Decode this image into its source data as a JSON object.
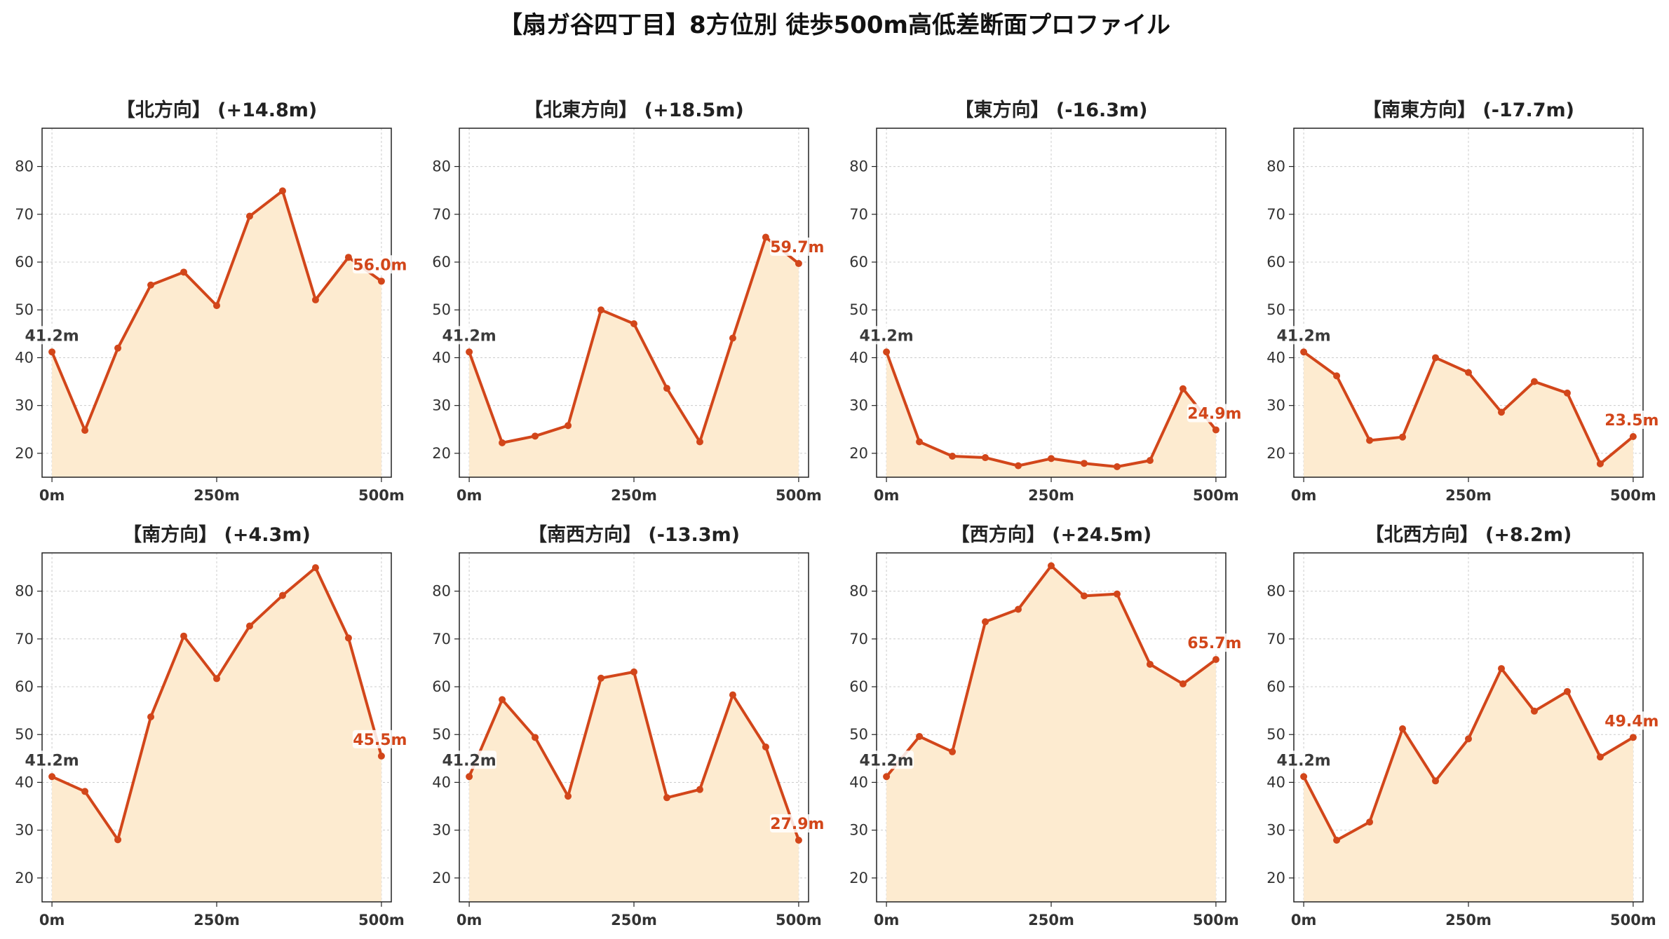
{
  "title": "【扇ガ谷四丁目】8方位別 徒歩500m高低差断面プロファイル",
  "colors": {
    "line": "#d2461a",
    "fill": "#fdebd0",
    "start_label": "#3a3a3a",
    "grid": "#cccccc"
  },
  "chart_data": [
    {
      "type": "area",
      "title": "【北方向】 (+14.8m)",
      "x_ticks": [
        "0m",
        "250m",
        "500m"
      ],
      "y_ticks": [
        "20",
        "30",
        "40",
        "50",
        "60",
        "70",
        "80"
      ],
      "ylim": [
        15,
        88
      ],
      "xlim": [
        -15,
        515
      ],
      "grid": true,
      "x": [
        0,
        50,
        100,
        150,
        200,
        250,
        300,
        350,
        400,
        450,
        500
      ],
      "values": [
        41.2,
        24.8,
        42.0,
        55.2,
        57.9,
        50.9,
        69.6,
        74.9,
        52.1,
        61.0,
        56.0
      ],
      "start_label": "41.2m",
      "end_label": "56.0m"
    },
    {
      "type": "area",
      "title": "【北東方向】 (+18.5m)",
      "x_ticks": [
        "0m",
        "250m",
        "500m"
      ],
      "y_ticks": [
        "20",
        "30",
        "40",
        "50",
        "60",
        "70",
        "80"
      ],
      "ylim": [
        15,
        88
      ],
      "xlim": [
        -15,
        515
      ],
      "grid": true,
      "x": [
        0,
        50,
        100,
        150,
        200,
        250,
        300,
        350,
        400,
        450,
        500
      ],
      "values": [
        41.2,
        22.2,
        23.6,
        25.8,
        50.0,
        47.1,
        33.6,
        22.4,
        44.1,
        65.2,
        59.7
      ],
      "start_label": "41.2m",
      "end_label": "59.7m"
    },
    {
      "type": "area",
      "title": "【東方向】 (-16.3m)",
      "x_ticks": [
        "0m",
        "250m",
        "500m"
      ],
      "y_ticks": [
        "20",
        "30",
        "40",
        "50",
        "60",
        "70",
        "80"
      ],
      "ylim": [
        15,
        88
      ],
      "xlim": [
        -15,
        515
      ],
      "grid": true,
      "x": [
        0,
        50,
        100,
        150,
        200,
        250,
        300,
        350,
        400,
        450,
        500
      ],
      "values": [
        41.2,
        22.4,
        19.4,
        19.1,
        17.4,
        18.9,
        17.9,
        17.2,
        18.5,
        33.5,
        24.9
      ],
      "start_label": "41.2m",
      "end_label": "24.9m"
    },
    {
      "type": "area",
      "title": "【南東方向】 (-17.7m)",
      "x_ticks": [
        "0m",
        "250m",
        "500m"
      ],
      "y_ticks": [
        "20",
        "30",
        "40",
        "50",
        "60",
        "70",
        "80"
      ],
      "ylim": [
        15,
        88
      ],
      "xlim": [
        -15,
        515
      ],
      "grid": true,
      "x": [
        0,
        50,
        100,
        150,
        200,
        250,
        300,
        350,
        400,
        450,
        500
      ],
      "values": [
        41.2,
        36.2,
        22.7,
        23.4,
        40.0,
        36.9,
        28.6,
        35.0,
        32.6,
        17.8,
        23.5
      ],
      "start_label": "41.2m",
      "end_label": "23.5m"
    },
    {
      "type": "area",
      "title": "【南方向】 (+4.3m)",
      "x_ticks": [
        "0m",
        "250m",
        "500m"
      ],
      "y_ticks": [
        "20",
        "30",
        "40",
        "50",
        "60",
        "70",
        "80"
      ],
      "ylim": [
        15,
        88
      ],
      "xlim": [
        -15,
        515
      ],
      "grid": true,
      "x": [
        0,
        50,
        100,
        150,
        200,
        250,
        300,
        350,
        400,
        450,
        500
      ],
      "values": [
        41.2,
        38.1,
        28.0,
        53.7,
        70.6,
        61.7,
        72.7,
        79.1,
        84.9,
        70.2,
        45.5
      ],
      "start_label": "41.2m",
      "end_label": "45.5m"
    },
    {
      "type": "area",
      "title": "【南西方向】 (-13.3m)",
      "x_ticks": [
        "0m",
        "250m",
        "500m"
      ],
      "y_ticks": [
        "20",
        "30",
        "40",
        "50",
        "60",
        "70",
        "80"
      ],
      "ylim": [
        15,
        88
      ],
      "xlim": [
        -15,
        515
      ],
      "grid": true,
      "x": [
        0,
        50,
        100,
        150,
        200,
        250,
        300,
        350,
        400,
        450,
        500
      ],
      "values": [
        41.2,
        57.3,
        49.4,
        37.1,
        61.8,
        63.1,
        36.8,
        38.5,
        58.3,
        47.4,
        27.9
      ],
      "start_label": "41.2m",
      "end_label": "27.9m"
    },
    {
      "type": "area",
      "title": "【西方向】 (+24.5m)",
      "x_ticks": [
        "0m",
        "250m",
        "500m"
      ],
      "y_ticks": [
        "20",
        "30",
        "40",
        "50",
        "60",
        "70",
        "80"
      ],
      "ylim": [
        15,
        88
      ],
      "xlim": [
        -15,
        515
      ],
      "grid": true,
      "x": [
        0,
        50,
        100,
        150,
        200,
        250,
        300,
        350,
        400,
        450,
        500
      ],
      "values": [
        41.2,
        49.6,
        46.4,
        73.6,
        76.2,
        85.3,
        79.0,
        79.4,
        64.7,
        60.6,
        65.7
      ],
      "start_label": "41.2m",
      "end_label": "65.7m"
    },
    {
      "type": "area",
      "title": "【北西方向】 (+8.2m)",
      "x_ticks": [
        "0m",
        "250m",
        "500m"
      ],
      "y_ticks": [
        "20",
        "30",
        "40",
        "50",
        "60",
        "70",
        "80"
      ],
      "ylim": [
        15,
        88
      ],
      "xlim": [
        -15,
        515
      ],
      "grid": true,
      "x": [
        0,
        50,
        100,
        150,
        200,
        250,
        300,
        350,
        400,
        450,
        500
      ],
      "values": [
        41.2,
        27.9,
        31.7,
        51.2,
        40.3,
        49.1,
        63.8,
        54.9,
        59.0,
        45.3,
        49.4
      ],
      "start_label": "41.2m",
      "end_label": "49.4m"
    }
  ]
}
